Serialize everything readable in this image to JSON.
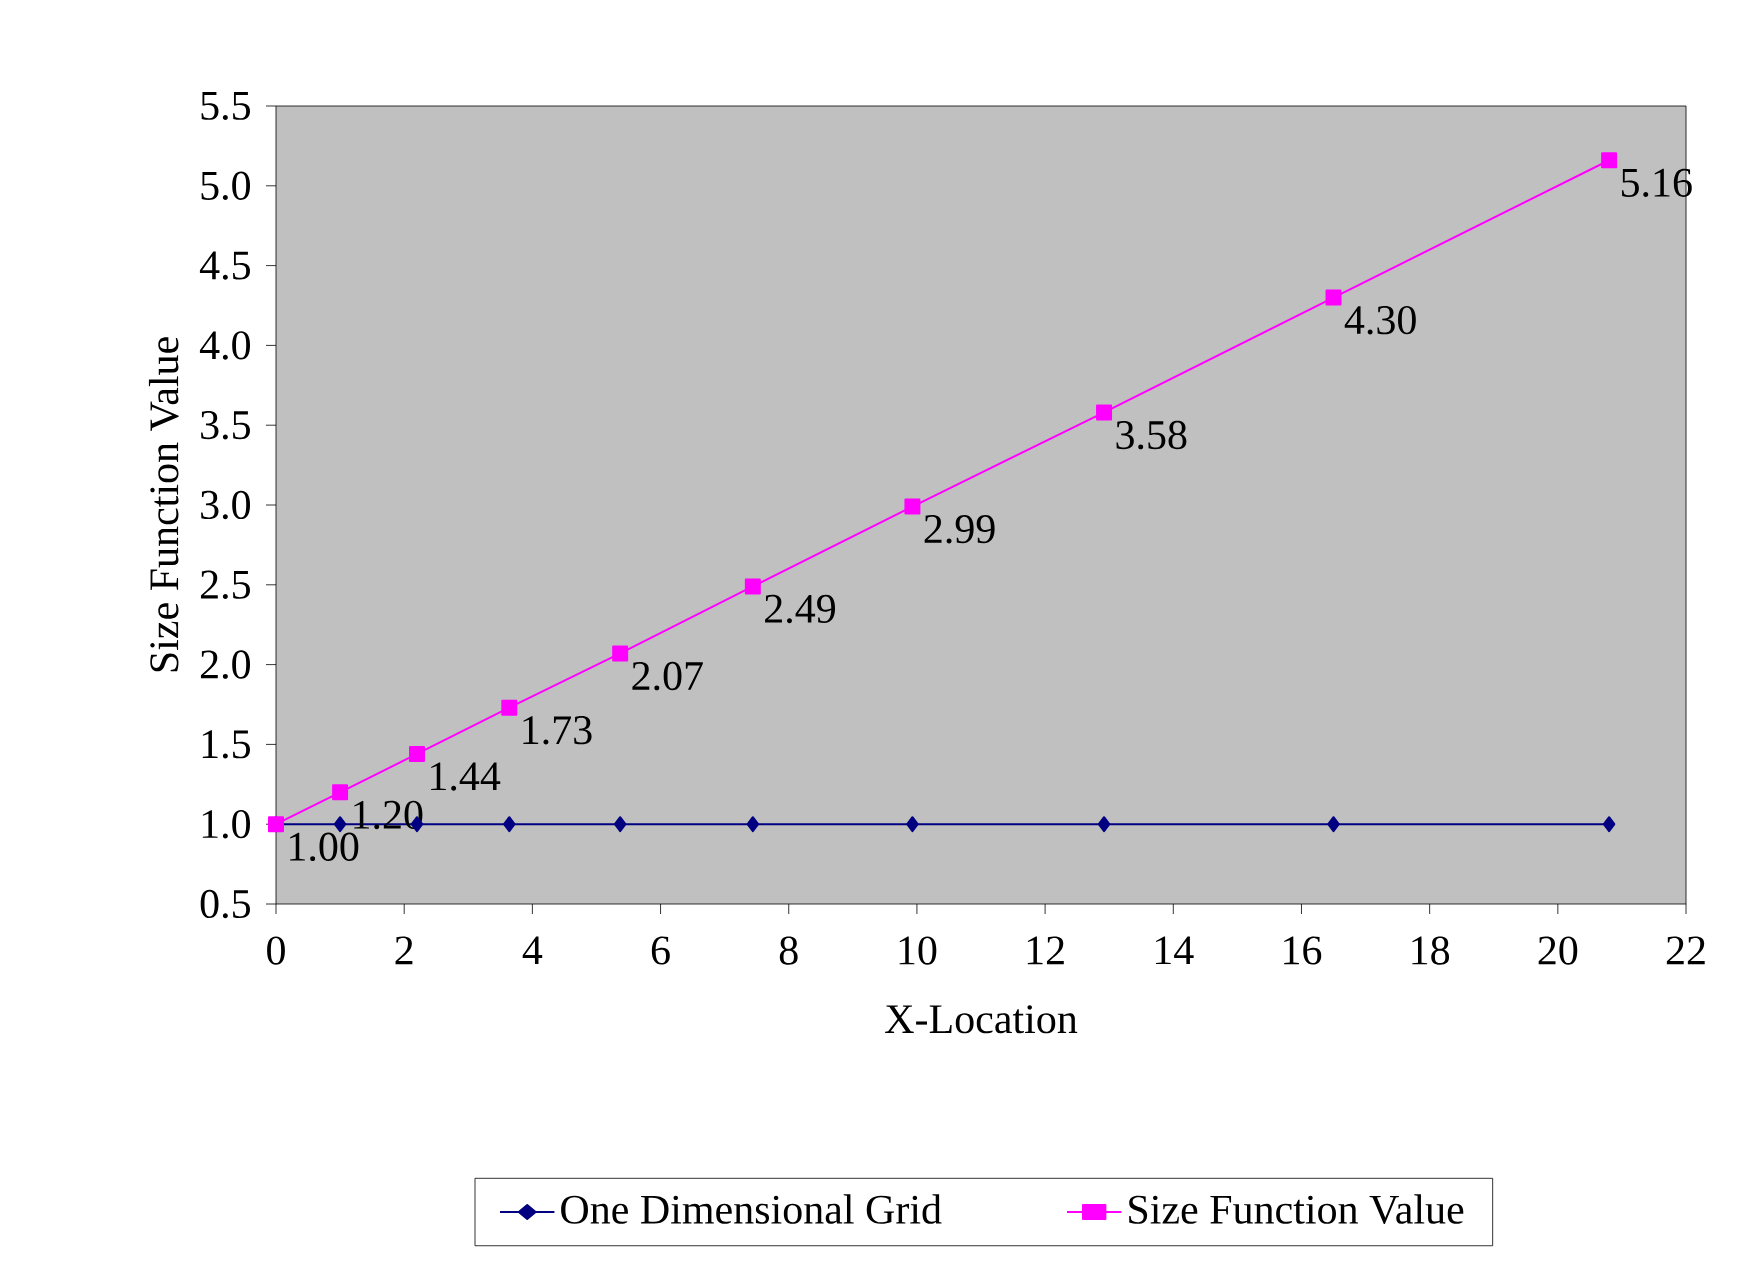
{
  "chart_data": {
    "type": "line",
    "xlabel": "X-Location",
    "ylabel": "Size Function Value",
    "xlim": [
      0,
      22
    ],
    "xticks": [
      0,
      2,
      4,
      6,
      8,
      10,
      12,
      14,
      16,
      18,
      20,
      22
    ],
    "ylim": [
      0.5,
      5.5
    ],
    "yticks": [
      {
        "value": 0.5,
        "label": "0.5"
      },
      {
        "value": 1,
        "label": "1.0"
      },
      {
        "value": 1.5,
        "label": "1.5"
      },
      {
        "value": 2,
        "label": "2.0"
      },
      {
        "value": 2.5,
        "label": "2.5"
      },
      {
        "value": 3,
        "label": "3.0"
      },
      {
        "value": 3.5,
        "label": "3.5"
      },
      {
        "value": 4,
        "label": "4.0"
      },
      {
        "value": 4.5,
        "label": "4.5"
      },
      {
        "value": 5,
        "label": "5.0"
      },
      {
        "value": 5.5,
        "label": "5.5"
      }
    ],
    "x": [
      0,
      1,
      2.2,
      3.64,
      5.37,
      7.44,
      9.93,
      12.92,
      16.5,
      20.8
    ],
    "grid": false,
    "legend": "bottom",
    "series": [
      {
        "name": "One Dimensional Grid",
        "color": "#000080",
        "marker": "diamond",
        "values": [
          1,
          1,
          1,
          1,
          1,
          1,
          1,
          1,
          1,
          1
        ]
      },
      {
        "name": "Size Function Value",
        "color": "#ff00ff",
        "marker": "square",
        "values": [
          1,
          1.2,
          1.44,
          1.73,
          2.07,
          2.49,
          2.99,
          3.58,
          4.3,
          5.16
        ],
        "value_labels": [
          "1.00",
          "1.20",
          "1.44",
          "1.73",
          "2.07",
          "2.49",
          "2.99",
          "3.58",
          "4.30",
          "5.16"
        ]
      }
    ]
  }
}
